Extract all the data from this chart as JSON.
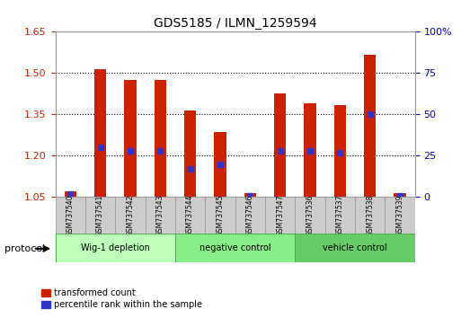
{
  "title": "GDS5185 / ILMN_1259594",
  "samples": [
    "GSM737540",
    "GSM737541",
    "GSM737542",
    "GSM737543",
    "GSM737544",
    "GSM737545",
    "GSM737546",
    "GSM737547",
    "GSM737536",
    "GSM737537",
    "GSM737538",
    "GSM737539"
  ],
  "red_values": [
    1.07,
    1.515,
    1.475,
    1.475,
    1.365,
    1.285,
    1.065,
    1.425,
    1.39,
    1.385,
    1.565,
    1.065
  ],
  "blue_values": [
    0.02,
    0.3,
    0.28,
    0.28,
    0.17,
    0.2,
    0.01,
    0.28,
    0.28,
    0.27,
    0.5,
    0.01
  ],
  "ylim_left": [
    1.05,
    1.65
  ],
  "ylim_right": [
    0,
    100
  ],
  "yticks_left": [
    1.05,
    1.2,
    1.35,
    1.5,
    1.65
  ],
  "yticks_right": [
    0,
    25,
    50,
    75,
    100
  ],
  "groups": [
    {
      "label": "Wig-1 depletion",
      "start": 0,
      "end": 4
    },
    {
      "label": "negative control",
      "start": 4,
      "end": 8
    },
    {
      "label": "vehicle control",
      "start": 8,
      "end": 12
    }
  ],
  "protocol_label": "protocol",
  "red_color": "#cc2200",
  "blue_color": "#3333cc",
  "bar_width": 0.4,
  "group_colors": [
    "#bbffbb",
    "#88ee88",
    "#66cc66"
  ],
  "xlabel_color": "#cc2200",
  "right_axis_color": "#0000cc",
  "grid_color": "#000000",
  "sample_box_color": "#cccccc",
  "legend_red": "transformed count",
  "legend_blue": "percentile rank within the sample"
}
